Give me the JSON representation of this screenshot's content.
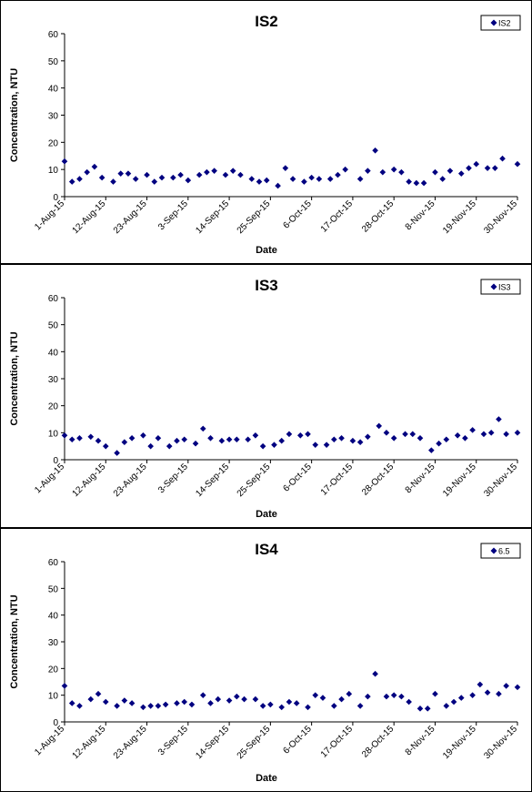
{
  "chart_data": [
    {
      "type": "scatter",
      "title": "IS2",
      "xlabel": "Date",
      "ylabel": "Concentration, NTU",
      "ylim": [
        0,
        60
      ],
      "yticks": [
        "0",
        "10",
        "20",
        "30",
        "40",
        "50",
        "60"
      ],
      "xlim": [
        "2015-08-01",
        "2015-11-30"
      ],
      "xticks": [
        "1-Aug-15",
        "12-Aug-15",
        "23-Aug-15",
        "3-Sep-15",
        "14-Sep-15",
        "25-Sep-15",
        "6-Oct-15",
        "17-Oct-15",
        "28-Oct-15",
        "8-Nov-15",
        "19-Nov-15",
        "30-Nov-15"
      ],
      "legend": "IS2",
      "legend_position": "top-right",
      "marker_color": "#000080",
      "series": [
        {
          "name": "IS2",
          "x": [
            "2015-08-01",
            "2015-08-03",
            "2015-08-05",
            "2015-08-07",
            "2015-08-09",
            "2015-08-11",
            "2015-08-14",
            "2015-08-16",
            "2015-08-18",
            "2015-08-20",
            "2015-08-23",
            "2015-08-25",
            "2015-08-27",
            "2015-08-30",
            "2015-09-01",
            "2015-09-03",
            "2015-09-06",
            "2015-09-08",
            "2015-09-10",
            "2015-09-13",
            "2015-09-15",
            "2015-09-17",
            "2015-09-20",
            "2015-09-22",
            "2015-09-24",
            "2015-09-27",
            "2015-09-29",
            "2015-10-01",
            "2015-10-04",
            "2015-10-06",
            "2015-10-08",
            "2015-10-11",
            "2015-10-13",
            "2015-10-15",
            "2015-10-19",
            "2015-10-21",
            "2015-10-23",
            "2015-10-25",
            "2015-10-28",
            "2015-10-30",
            "2015-11-01",
            "2015-11-03",
            "2015-11-05",
            "2015-11-08",
            "2015-11-10",
            "2015-11-12",
            "2015-11-15",
            "2015-11-17",
            "2015-11-19",
            "2015-11-22",
            "2015-11-24",
            "2015-11-26",
            "2015-11-30"
          ],
          "y": [
            13,
            5.5,
            6.5,
            9,
            11,
            7,
            5.5,
            8.5,
            8.5,
            6.5,
            8,
            5.5,
            7,
            7,
            8,
            6,
            8,
            9,
            9.5,
            8,
            9.5,
            8,
            6.5,
            5.5,
            6,
            4,
            10.5,
            6.5,
            5.5,
            7,
            6.5,
            6.5,
            8,
            10,
            6.5,
            9.5,
            17,
            9,
            10,
            9,
            5.5,
            5,
            5,
            9,
            6.5,
            9.5,
            8.5,
            10.5,
            12,
            10.5,
            10.5,
            14,
            12
          ]
        }
      ]
    },
    {
      "type": "scatter",
      "title": "IS3",
      "xlabel": "Date",
      "ylabel": "Concentration, NTU",
      "ylim": [
        0,
        60
      ],
      "yticks": [
        "0",
        "10",
        "20",
        "30",
        "40",
        "50",
        "60"
      ],
      "xlim": [
        "2015-08-01",
        "2015-11-30"
      ],
      "xticks": [
        "1-Aug-15",
        "12-Aug-15",
        "23-Aug-15",
        "3-Sep-15",
        "14-Sep-15",
        "25-Sep-15",
        "6-Oct-15",
        "17-Oct-15",
        "28-Oct-15",
        "8-Nov-15",
        "19-Nov-15",
        "30-Nov-15"
      ],
      "legend": "IS3",
      "legend_position": "top-right",
      "marker_color": "#000080",
      "series": [
        {
          "name": "IS3",
          "x": [
            "2015-08-01",
            "2015-08-03",
            "2015-08-05",
            "2015-08-08",
            "2015-08-10",
            "2015-08-12",
            "2015-08-15",
            "2015-08-17",
            "2015-08-19",
            "2015-08-22",
            "2015-08-24",
            "2015-08-26",
            "2015-08-29",
            "2015-08-31",
            "2015-09-02",
            "2015-09-05",
            "2015-09-07",
            "2015-09-09",
            "2015-09-12",
            "2015-09-14",
            "2015-09-16",
            "2015-09-19",
            "2015-09-21",
            "2015-09-23",
            "2015-09-26",
            "2015-09-28",
            "2015-09-30",
            "2015-10-03",
            "2015-10-05",
            "2015-10-07",
            "2015-10-10",
            "2015-10-12",
            "2015-10-14",
            "2015-10-17",
            "2015-10-19",
            "2015-10-21",
            "2015-10-24",
            "2015-10-26",
            "2015-10-28",
            "2015-10-31",
            "2015-11-02",
            "2015-11-04",
            "2015-11-07",
            "2015-11-09",
            "2015-11-11",
            "2015-11-14",
            "2015-11-16",
            "2015-11-18",
            "2015-11-21",
            "2015-11-23",
            "2015-11-25",
            "2015-11-27",
            "2015-11-30"
          ],
          "y": [
            9,
            7.5,
            8,
            8.5,
            7,
            5,
            2.5,
            6.5,
            8,
            9,
            5,
            8,
            5,
            7,
            7.5,
            6,
            11.5,
            8,
            7,
            7.5,
            7.5,
            7.5,
            9,
            5,
            5.5,
            7,
            9.5,
            9,
            9.5,
            5.5,
            5.5,
            7.5,
            8,
            7,
            6.5,
            8.5,
            12.5,
            10,
            8,
            9.5,
            9.5,
            8,
            3.5,
            6,
            7.5,
            9,
            8,
            11,
            9.5,
            10,
            15,
            9.5,
            10
          ]
        }
      ]
    },
    {
      "type": "scatter",
      "title": "IS4",
      "xlabel": "Date",
      "ylabel": "Concentration, NTU",
      "ylim": [
        0,
        60
      ],
      "yticks": [
        "0",
        "10",
        "20",
        "30",
        "40",
        "50",
        "60"
      ],
      "xlim": [
        "2015-08-01",
        "2015-11-30"
      ],
      "xticks": [
        "1-Aug-15",
        "12-Aug-15",
        "23-Aug-15",
        "3-Sep-15",
        "14-Sep-15",
        "25-Sep-15",
        "6-Oct-15",
        "17-Oct-15",
        "28-Oct-15",
        "8-Nov-15",
        "19-Nov-15",
        "30-Nov-15"
      ],
      "legend": "6.5",
      "legend_position": "top-right",
      "marker_color": "#000080",
      "series": [
        {
          "name": "6.5",
          "x": [
            "2015-08-01",
            "2015-08-03",
            "2015-08-05",
            "2015-08-08",
            "2015-08-10",
            "2015-08-12",
            "2015-08-15",
            "2015-08-17",
            "2015-08-19",
            "2015-08-22",
            "2015-08-24",
            "2015-08-26",
            "2015-08-28",
            "2015-08-31",
            "2015-09-02",
            "2015-09-04",
            "2015-09-07",
            "2015-09-09",
            "2015-09-11",
            "2015-09-14",
            "2015-09-16",
            "2015-09-18",
            "2015-09-21",
            "2015-09-23",
            "2015-09-25",
            "2015-09-28",
            "2015-09-30",
            "2015-10-02",
            "2015-10-05",
            "2015-10-07",
            "2015-10-09",
            "2015-10-12",
            "2015-10-14",
            "2015-10-16",
            "2015-10-19",
            "2015-10-21",
            "2015-10-23",
            "2015-10-26",
            "2015-10-28",
            "2015-10-30",
            "2015-11-01",
            "2015-11-04",
            "2015-11-06",
            "2015-11-08",
            "2015-11-11",
            "2015-11-13",
            "2015-11-15",
            "2015-11-18",
            "2015-11-20",
            "2015-11-22",
            "2015-11-25",
            "2015-11-27",
            "2015-11-30"
          ],
          "y": [
            13.5,
            7,
            6,
            8.5,
            10.5,
            7.5,
            6,
            8,
            7,
            5.5,
            6,
            6,
            6.5,
            7,
            7.5,
            6.5,
            10,
            7,
            8.5,
            8,
            9.5,
            8.5,
            8.5,
            6,
            6.5,
            5.5,
            7.5,
            7,
            5.5,
            10,
            9,
            6,
            8.5,
            10.5,
            6,
            9.5,
            18,
            9.5,
            10,
            9.5,
            7.5,
            5,
            5,
            10.5,
            6,
            7.5,
            9,
            10,
            14,
            11,
            10.5,
            13.5,
            13
          ]
        }
      ]
    }
  ]
}
